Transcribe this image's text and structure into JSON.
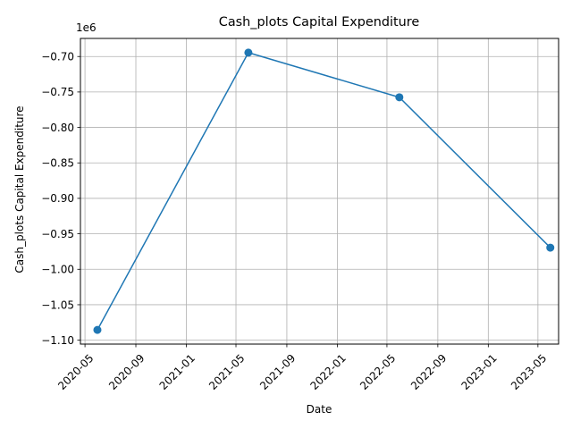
{
  "chart_data": {
    "type": "line",
    "title": "Cash_plots Capital Expenditure",
    "xlabel": "Date",
    "ylabel": "Cash_plots Capital Expenditure",
    "y_offset_text": "1e6",
    "grid": true,
    "x_scale": "date",
    "xlim": [
      "2020-04-20",
      "2023-06-20"
    ],
    "ylim": [
      -1.1055,
      -0.6745
    ],
    "x_ticks": [
      "2020-05",
      "2020-09",
      "2021-01",
      "2021-05",
      "2021-09",
      "2022-01",
      "2022-05",
      "2022-09",
      "2023-01",
      "2023-05"
    ],
    "y_ticks": [
      -0.7,
      -0.75,
      -0.8,
      -0.85,
      -0.9,
      -0.95,
      -1.0,
      -1.05,
      -1.1
    ],
    "y_tick_labels": [
      "−0.70",
      "−0.75",
      "−0.80",
      "−0.85",
      "−0.90",
      "−0.95",
      "−1.00",
      "−1.05",
      "−1.10"
    ],
    "series": [
      {
        "color": "#1f77b4",
        "marker": "circle",
        "x": [
          "2020-05-31",
          "2021-05-31",
          "2022-05-31",
          "2023-05-31"
        ],
        "y": [
          -1.0855,
          -0.6945,
          -0.7575,
          -0.9695
        ]
      }
    ]
  }
}
